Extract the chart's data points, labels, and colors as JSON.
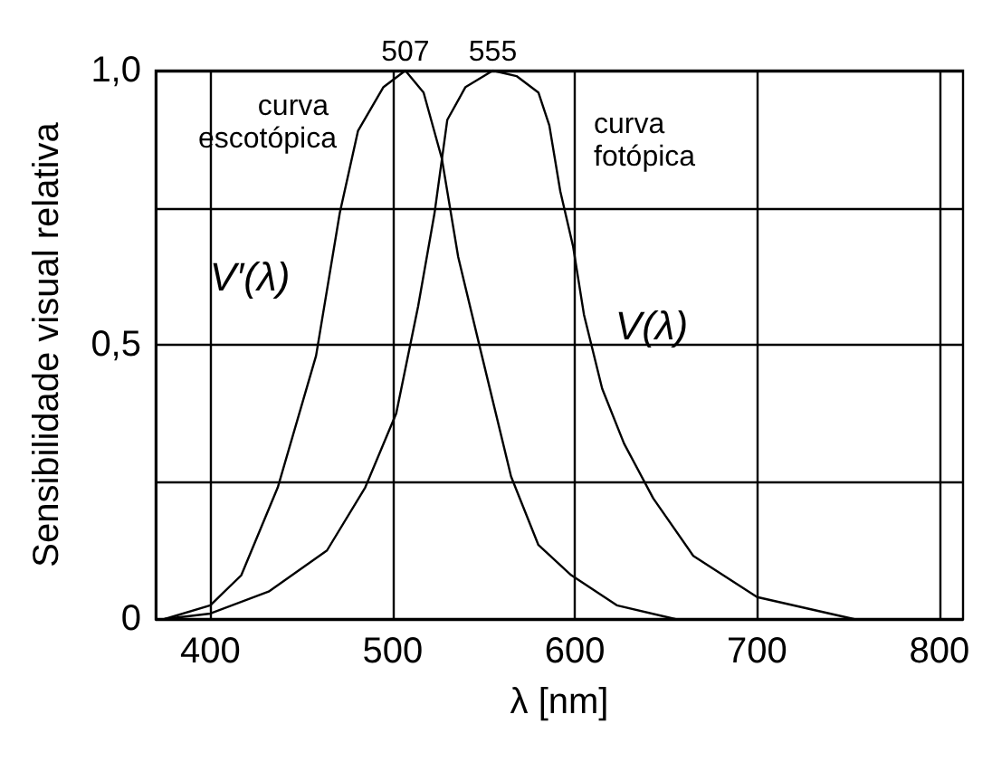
{
  "chart_data": {
    "type": "line",
    "xlabel": "λ [nm]",
    "ylabel": "Sensibilidade visual relativa",
    "xlim": [
      370,
      813
    ],
    "ylim": [
      0,
      1
    ],
    "xticks": [
      400,
      500,
      600,
      700,
      800
    ],
    "yticks": [
      0,
      {
        "value": 0.25,
        "label": null
      },
      {
        "value": 0.5,
        "label": "0,5"
      },
      {
        "value": 0.75,
        "label": null
      },
      {
        "value": 1,
        "label": "1,0"
      }
    ],
    "grid": true,
    "marker": "none",
    "line_style": "solid",
    "series": [
      {
        "color": "#000000",
        "x": [
          375,
          400,
          417,
          437,
          458,
          471,
          481,
          495,
          507,
          517,
          527,
          536,
          549,
          565,
          580,
          598,
          623,
          655
        ],
        "values": [
          0,
          0.025,
          0.08,
          0.24,
          0.48,
          0.74,
          0.89,
          0.97,
          1.0,
          0.96,
          0.84,
          0.66,
          0.48,
          0.26,
          0.135,
          0.08,
          0.025,
          0
        ]
      },
      {
        "color": "#000000",
        "x": [
          375,
          400,
          432,
          464,
          485,
          502,
          514,
          523,
          530,
          540,
          555,
          568,
          580,
          586,
          592,
          599,
          605,
          615,
          627,
          643,
          665,
          700,
          753
        ],
        "values": [
          0,
          0.01,
          0.05,
          0.125,
          0.24,
          0.375,
          0.57,
          0.74,
          0.91,
          0.97,
          1.0,
          0.99,
          0.96,
          0.9,
          0.78,
          0.68,
          0.555,
          0.42,
          0.32,
          0.22,
          0.115,
          0.04,
          0
        ]
      }
    ],
    "annotations": [
      {
        "text": "507",
        "x": 507,
        "y": 1.0
      },
      {
        "text": "555",
        "x": 555,
        "y": 1.0
      },
      "curva escotópica",
      "curva fotópica",
      "V′(λ)",
      "V(λ)"
    ]
  }
}
